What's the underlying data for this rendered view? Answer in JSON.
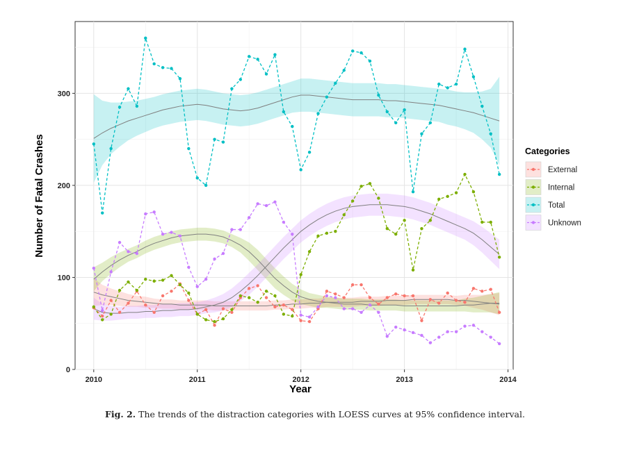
{
  "caption": {
    "label": "Fig. 2.",
    "text": "The trends of the distraction categories with LOESS curves at 95% confidence interval."
  },
  "chart_data": {
    "type": "line",
    "xlabel": "Year",
    "ylabel": "Number of Fatal Crashes",
    "xlim": [
      2009.82,
      2014.05
    ],
    "ylim": [
      0,
      378
    ],
    "x_ticks": [
      2010,
      2011,
      2012,
      2013,
      2014
    ],
    "y_ticks": [
      0,
      100,
      200,
      300
    ],
    "grid": true,
    "legend": {
      "title": "Categories",
      "position": "right"
    },
    "x": [
      2010.0,
      2010.0833,
      2010.1667,
      2010.25,
      2010.3333,
      2010.4167,
      2010.5,
      2010.5833,
      2010.6667,
      2010.75,
      2010.8333,
      2010.9167,
      2011.0,
      2011.0833,
      2011.1667,
      2011.25,
      2011.3333,
      2011.4167,
      2011.5,
      2011.5833,
      2011.6667,
      2011.75,
      2011.8333,
      2011.9167,
      2012.0,
      2012.0833,
      2012.1667,
      2012.25,
      2012.3333,
      2012.4167,
      2012.5,
      2012.5833,
      2012.6667,
      2012.75,
      2012.8333,
      2012.9167,
      2013.0,
      2013.0833,
      2013.1667,
      2013.25,
      2013.3333,
      2013.4167,
      2013.5,
      2013.5833,
      2013.6667,
      2013.75,
      2013.8333,
      2013.9167
    ],
    "series": [
      {
        "name": "External",
        "color": "#f8766d",
        "values": [
          67,
          58,
          75,
          62,
          72,
          85,
          70,
          62,
          80,
          85,
          93,
          75,
          60,
          65,
          48,
          66,
          62,
          78,
          88,
          91,
          78,
          68,
          70,
          65,
          53,
          52,
          66,
          85,
          82,
          78,
          92,
          92,
          78,
          71,
          78,
          82,
          80,
          80,
          53,
          76,
          72,
          83,
          75,
          73,
          88,
          85,
          87,
          62
        ],
        "loess": [
          84,
          81,
          79,
          77,
          75,
          74,
          73,
          72,
          71,
          71,
          70,
          70,
          70,
          70,
          69,
          69,
          69,
          69,
          69,
          69,
          69,
          70,
          70,
          71,
          71,
          72,
          72,
          73,
          73,
          73,
          73,
          74,
          74,
          74,
          75,
          75,
          75,
          76,
          76,
          76,
          76,
          76,
          75,
          75,
          74,
          73,
          72,
          71
        ],
        "band": [
          15,
          11,
          9,
          8,
          7,
          6,
          6,
          5,
          5,
          5,
          5,
          5,
          5,
          5,
          5,
          5,
          5,
          5,
          5,
          5,
          5,
          5,
          5,
          5,
          5,
          5,
          5,
          5,
          5,
          5,
          5,
          5,
          5,
          5,
          5,
          5,
          5,
          5,
          5,
          5,
          5,
          5,
          5,
          6,
          7,
          8,
          10,
          12
        ]
      },
      {
        "name": "Internal",
        "color": "#7cae00",
        "values": [
          68,
          54,
          60,
          86,
          95,
          86,
          98,
          96,
          97,
          102,
          92,
          83,
          60,
          54,
          52,
          55,
          65,
          80,
          78,
          73,
          85,
          80,
          60,
          58,
          103,
          128,
          145,
          148,
          150,
          168,
          183,
          199,
          202,
          186,
          153,
          147,
          162,
          108,
          153,
          162,
          185,
          188,
          192,
          212,
          193,
          160,
          160,
          122
        ],
        "loess": [
          98,
          106,
          113,
          119,
          124,
          128,
          133,
          137,
          140,
          143,
          145,
          146,
          147,
          147,
          146,
          144,
          140,
          135,
          128,
          119,
          109,
          99,
          91,
          84,
          79,
          76,
          74,
          73,
          72,
          71,
          71,
          71,
          70,
          70,
          70,
          70,
          69,
          69,
          69,
          69,
          69,
          69,
          69,
          70,
          70,
          71,
          72,
          72
        ],
        "band": [
          13,
          10,
          9,
          8,
          7,
          7,
          7,
          7,
          7,
          7,
          7,
          7,
          7,
          7,
          7,
          7,
          7,
          8,
          10,
          11,
          11,
          11,
          10,
          9,
          8,
          7,
          7,
          6,
          6,
          6,
          6,
          6,
          6,
          6,
          6,
          6,
          6,
          6,
          6,
          6,
          6,
          6,
          6,
          7,
          8,
          9,
          10,
          12
        ]
      },
      {
        "name": "Total",
        "color": "#00bfc4",
        "values": [
          245,
          170,
          240,
          285,
          305,
          286,
          360,
          332,
          328,
          327,
          316,
          240,
          208,
          200,
          250,
          247,
          305,
          315,
          340,
          337,
          321,
          342,
          280,
          264,
          217,
          236,
          278,
          296,
          311,
          325,
          346,
          344,
          335,
          298,
          280,
          268,
          282,
          193,
          256,
          268,
          310,
          306,
          310,
          348,
          318,
          286,
          256,
          212
        ],
        "loess": [
          251,
          257,
          262,
          266,
          270,
          273,
          276,
          279,
          282,
          284,
          286,
          287,
          288,
          287,
          285,
          283,
          282,
          281,
          282,
          284,
          287,
          290,
          293,
          296,
          298,
          298,
          297,
          296,
          295,
          294,
          293,
          293,
          293,
          293,
          292,
          292,
          291,
          290,
          289,
          288,
          287,
          285,
          283,
          281,
          279,
          276,
          273,
          270
        ],
        "band": [
          48,
          35,
          28,
          24,
          21,
          19,
          18,
          17,
          17,
          17,
          17,
          17,
          17,
          17,
          17,
          17,
          17,
          17,
          17,
          17,
          17,
          17,
          17,
          17,
          18,
          18,
          18,
          18,
          18,
          18,
          18,
          18,
          18,
          18,
          18,
          18,
          18,
          18,
          18,
          18,
          18,
          19,
          19,
          20,
          22,
          26,
          32,
          48
        ]
      },
      {
        "name": "Unknown",
        "color": "#c77cff",
        "values": [
          110,
          64,
          106,
          138,
          128,
          126,
          169,
          171,
          147,
          149,
          145,
          111,
          90,
          98,
          120,
          126,
          152,
          152,
          165,
          180,
          178,
          182,
          160,
          147,
          59,
          57,
          68,
          80,
          78,
          66,
          66,
          62,
          70,
          62,
          36,
          46,
          43,
          40,
          37,
          29,
          35,
          41,
          41,
          47,
          48,
          41,
          35,
          28
        ],
        "loess": [
          66,
          62,
          61,
          61,
          62,
          62,
          63,
          63,
          64,
          64,
          65,
          65,
          66,
          68,
          70,
          73,
          78,
          85,
          93,
          102,
          112,
          122,
          132,
          141,
          150,
          157,
          163,
          168,
          172,
          175,
          177,
          178,
          179,
          179,
          179,
          178,
          177,
          175,
          172,
          169,
          165,
          161,
          157,
          153,
          148,
          141,
          133,
          125
        ],
        "band": [
          12,
          9,
          8,
          7,
          7,
          7,
          7,
          7,
          7,
          7,
          7,
          7,
          7,
          7,
          8,
          9,
          10,
          11,
          12,
          12,
          12,
          12,
          12,
          12,
          12,
          12,
          12,
          12,
          12,
          12,
          12,
          12,
          12,
          12,
          12,
          12,
          12,
          12,
          12,
          12,
          12,
          12,
          12,
          12,
          13,
          14,
          15,
          16
        ]
      }
    ]
  }
}
